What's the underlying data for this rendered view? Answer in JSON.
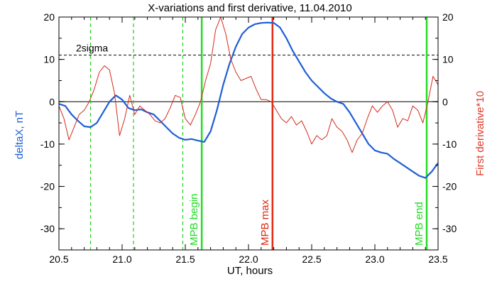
{
  "chart_data": {
    "type": "line",
    "title": "X-variations and first derivative, 11.04.2010",
    "xlabel": "UT, hours",
    "ylabel_left": "deltaX, nT",
    "ylabel_right": "First derivative*10",
    "xlim": [
      20.5,
      23.5
    ],
    "ylim": [
      -35,
      20
    ],
    "x_ticks": [
      "20.5",
      "21.0",
      "21.5",
      "22.0",
      "22.5",
      "23.0",
      "23.5"
    ],
    "y_ticks_left": [
      "-30",
      "-20",
      "-10",
      "0",
      "10",
      "20"
    ],
    "y_ticks_right": [
      "-30",
      "-20",
      "-10",
      "0",
      "10",
      "20"
    ],
    "colors": {
      "deltaX": "#1f5fd6",
      "derivative": "#d42a1a",
      "mpb_begin_end": "#22dd22",
      "mpb_max": "#e02a14",
      "dashed_markers": "#22cc22",
      "reference": "#000000"
    },
    "threshold": {
      "label": "2sigma",
      "y": 11
    },
    "zero_line": 0,
    "dashed_markers_x": [
      20.75,
      21.09,
      21.48
    ],
    "vertical_markers": [
      {
        "label": "MPB begin",
        "x": 21.63
      },
      {
        "label": "MPB max",
        "x": 22.19
      },
      {
        "label": "MPB end",
        "x": 23.41
      }
    ],
    "series": [
      {
        "role": "deltaX",
        "x": [
          20.5,
          20.55,
          20.6,
          20.65,
          20.7,
          20.75,
          20.8,
          20.85,
          20.9,
          20.95,
          21.0,
          21.05,
          21.1,
          21.15,
          21.2,
          21.25,
          21.3,
          21.35,
          21.4,
          21.45,
          21.5,
          21.55,
          21.6,
          21.65,
          21.7,
          21.75,
          21.8,
          21.85,
          21.9,
          21.95,
          22.0,
          22.05,
          22.1,
          22.15,
          22.2,
          22.25,
          22.3,
          22.35,
          22.4,
          22.45,
          22.5,
          22.55,
          22.6,
          22.65,
          22.7,
          22.75,
          22.8,
          22.85,
          22.9,
          22.95,
          23.0,
          23.05,
          23.1,
          23.15,
          23.2,
          23.25,
          23.3,
          23.35,
          23.4,
          23.45,
          23.5
        ],
        "y": [
          -0.5,
          -1,
          -3,
          -4.5,
          -5.8,
          -6,
          -5,
          -2.5,
          0,
          1.5,
          0.5,
          -1.5,
          -2,
          -1.8,
          -2.5,
          -3,
          -4.5,
          -6,
          -7.5,
          -8.5,
          -9,
          -8.8,
          -9.2,
          -9.5,
          -7,
          -2,
          4,
          9,
          13,
          16,
          17.5,
          18.3,
          18.6,
          18.7,
          18.6,
          17.5,
          15,
          12,
          9.5,
          7,
          5,
          3.5,
          2,
          0.8,
          0,
          -0.5,
          -2.5,
          -5,
          -7.5,
          -10,
          -11.5,
          -12,
          -12.3,
          -13.5,
          -14.5,
          -15.5,
          -16.5,
          -17.5,
          -18,
          -16.5,
          -14.5
        ]
      },
      {
        "role": "derivative",
        "x": [
          20.5,
          20.54,
          20.58,
          20.62,
          20.66,
          20.7,
          20.74,
          20.78,
          20.82,
          20.86,
          20.9,
          20.94,
          20.98,
          21.02,
          21.06,
          21.1,
          21.14,
          21.18,
          21.22,
          21.26,
          21.3,
          21.34,
          21.38,
          21.42,
          21.46,
          21.5,
          21.54,
          21.58,
          21.62,
          21.66,
          21.7,
          21.74,
          21.78,
          21.82,
          21.86,
          21.9,
          21.94,
          21.98,
          22.02,
          22.06,
          22.1,
          22.14,
          22.18,
          22.22,
          22.26,
          22.3,
          22.34,
          22.38,
          22.42,
          22.46,
          22.5,
          22.54,
          22.58,
          22.62,
          22.66,
          22.7,
          22.74,
          22.78,
          22.82,
          22.86,
          22.9,
          22.94,
          22.98,
          23.02,
          23.06,
          23.1,
          23.14,
          23.18,
          23.22,
          23.26,
          23.3,
          23.34,
          23.38,
          23.42,
          23.46,
          23.5
        ],
        "y": [
          -1,
          -4,
          -9,
          -6,
          -3,
          -2,
          0,
          3,
          7,
          8.5,
          7.5,
          2,
          -8,
          -4,
          1.5,
          -3,
          -1,
          -2,
          -3,
          -4.5,
          -5,
          -4,
          -1.5,
          1.5,
          1,
          -4,
          -5.5,
          -3,
          0,
          5,
          9,
          17,
          20,
          16,
          10,
          7,
          5,
          5.5,
          6,
          3,
          0.5,
          0.5,
          0,
          -2,
          -4,
          -5,
          -3.5,
          -5.5,
          -4.5,
          -7,
          -10,
          -8,
          -9,
          -8,
          -4,
          -6,
          -7,
          -9,
          -12,
          -9,
          -7.5,
          -4,
          -1,
          -2.5,
          -1,
          0,
          -2,
          -6,
          -4,
          -4.5,
          -1,
          -2,
          -5,
          0,
          6,
          4
        ]
      }
    ]
  }
}
